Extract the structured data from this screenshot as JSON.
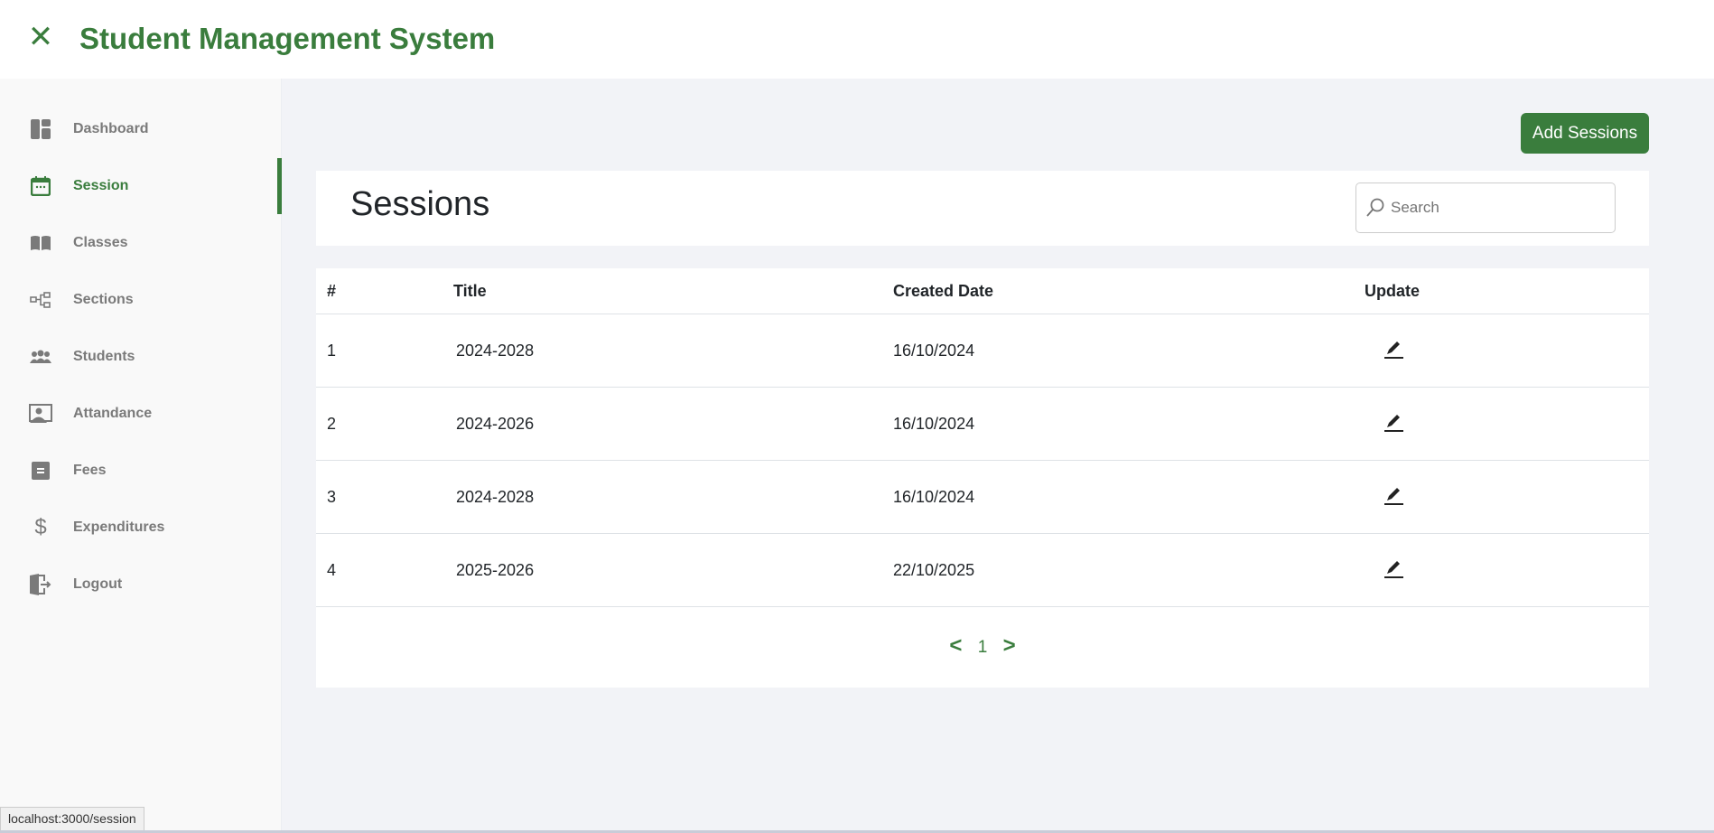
{
  "app": {
    "title": "Student Management System",
    "close_icon": "close-icon",
    "accent": "#3a7d3d"
  },
  "sidebar": {
    "items": [
      {
        "label": "Dashboard",
        "icon": "dashboard-icon"
      },
      {
        "label": "Session",
        "icon": "calendar-icon",
        "active": true
      },
      {
        "label": "Classes",
        "icon": "book-icon"
      },
      {
        "label": "Sections",
        "icon": "hierarchy-icon"
      },
      {
        "label": "Students",
        "icon": "users-icon"
      },
      {
        "label": "Attandance",
        "icon": "person-board-icon"
      },
      {
        "label": "Fees",
        "icon": "document-icon"
      },
      {
        "label": "Expenditures",
        "icon": "dollar-icon"
      },
      {
        "label": "Logout",
        "icon": "logout-icon"
      }
    ]
  },
  "main": {
    "add_button": "Add Sessions",
    "heading": "Sessions",
    "search": {
      "placeholder": "Search",
      "value": ""
    },
    "table": {
      "headers": [
        "#",
        "Title",
        "Created Date",
        "Update"
      ],
      "rows": [
        {
          "n": "1",
          "title": "2024-2028",
          "date": "16/10/2024"
        },
        {
          "n": "2",
          "title": "2024-2026",
          "date": "16/10/2024"
        },
        {
          "n": "3",
          "title": "2024-2028",
          "date": "16/10/2024"
        },
        {
          "n": "4",
          "title": "2025-2026",
          "date": "22/10/2025"
        }
      ]
    },
    "pagination": {
      "prev": "<",
      "page": "1",
      "next": ">"
    }
  },
  "status_bar": {
    "url": "localhost:3000/session"
  }
}
